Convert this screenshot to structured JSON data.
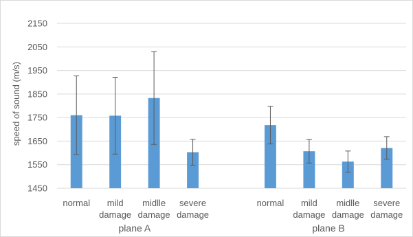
{
  "chart_data": {
    "type": "bar",
    "title": "",
    "xlabel": "",
    "ylabel": "speed of sound  (m/s)",
    "ylim": [
      1450,
      2150
    ],
    "yticks": [
      1450,
      1550,
      1650,
      1750,
      1850,
      1950,
      2050,
      2150
    ],
    "grid": true,
    "legend": "none",
    "bar_color": "#5b9bd5",
    "groups": [
      {
        "name": "plane A",
        "categories": [
          [
            "normal"
          ],
          [
            "mild",
            "damage"
          ],
          [
            "midlle",
            "damage"
          ],
          [
            "severe",
            "damage"
          ]
        ],
        "values": [
          1760,
          1758,
          1833,
          1603
        ],
        "errors": [
          167,
          163,
          197,
          55
        ]
      },
      {
        "name": "plane B",
        "categories": [
          [
            "normal"
          ],
          [
            "mild",
            "damage"
          ],
          [
            "midlle",
            "damage"
          ],
          [
            "severe",
            "damage"
          ]
        ],
        "values": [
          1718,
          1607,
          1563,
          1621
        ],
        "errors": [
          80,
          50,
          45,
          48
        ]
      }
    ]
  }
}
